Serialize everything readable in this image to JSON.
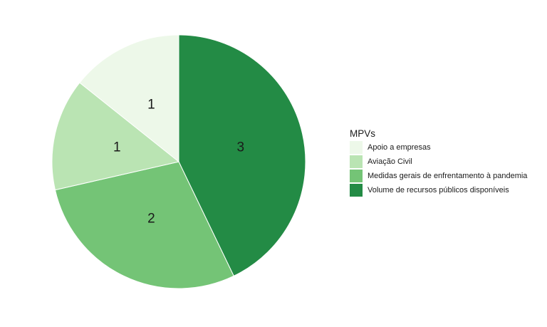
{
  "chart_data": {
    "type": "pie",
    "legend": {
      "title": "MPVs",
      "placement": "right"
    },
    "slices": [
      {
        "label": "Apoio a empresas",
        "value": 1,
        "color": "#edf8e9"
      },
      {
        "label": "Aviação Civil",
        "value": 1,
        "color": "#bae4b3"
      },
      {
        "label": "Medidas gerais de enfrentamento à pandemia",
        "value": 2,
        "color": "#74c476"
      },
      {
        "label": "Volume de recursos públicos disponíveis",
        "value": 3,
        "color": "#238b45"
      }
    ]
  }
}
